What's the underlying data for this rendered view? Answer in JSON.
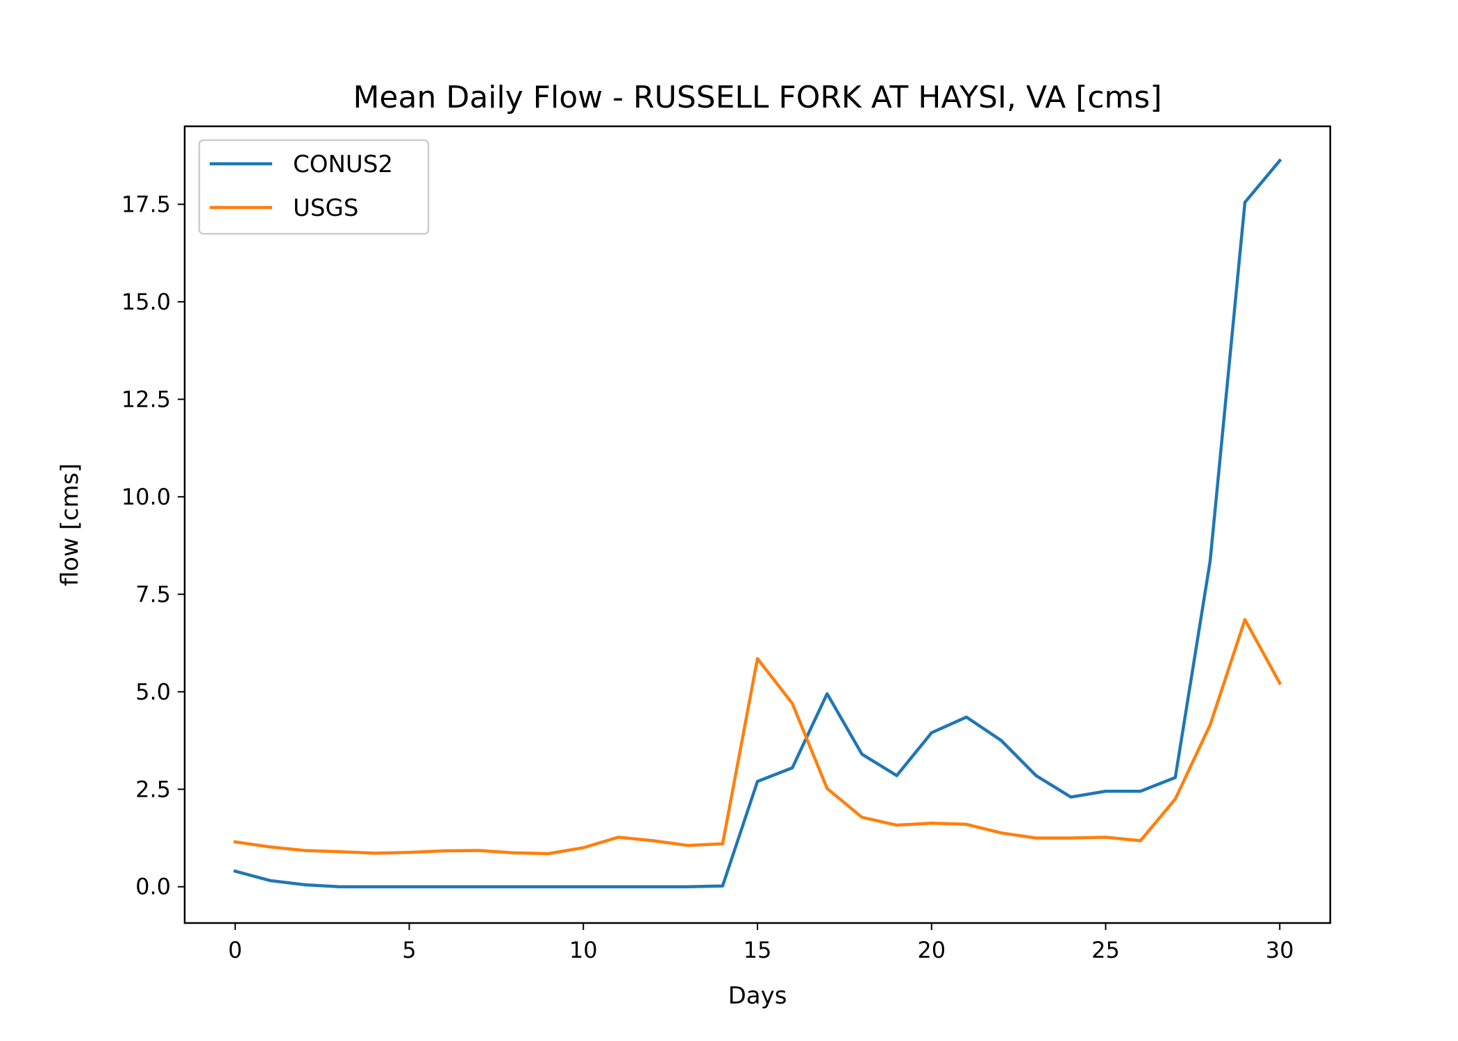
{
  "chart_data": {
    "type": "line",
    "title": "Mean Daily Flow - RUSSELL FORK AT HAYSI, VA [cms]",
    "xlabel": "Days",
    "ylabel": "flow [cms]",
    "xlim": [
      -1.45,
      31.45
    ],
    "ylim": [
      -0.93,
      19.5
    ],
    "xticks": [
      0,
      5,
      10,
      15,
      20,
      25,
      30
    ],
    "yticks": [
      0.0,
      2.5,
      5.0,
      7.5,
      10.0,
      12.5,
      15.0,
      17.5
    ],
    "ytick_labels": [
      "0.0",
      "2.5",
      "5.0",
      "7.5",
      "10.0",
      "12.5",
      "15.0",
      "17.5"
    ],
    "legend_position": "upper-left",
    "grid": false,
    "x": [
      0,
      1,
      2,
      3,
      4,
      5,
      6,
      7,
      8,
      9,
      10,
      11,
      12,
      13,
      14,
      15,
      16,
      17,
      18,
      19,
      20,
      21,
      22,
      23,
      24,
      25,
      26,
      27,
      28,
      29,
      30
    ],
    "series": [
      {
        "name": "CONUS2",
        "color": "#1f77b4",
        "values": [
          0.4,
          0.16,
          0.05,
          0.0,
          0.0,
          0.0,
          0.0,
          0.0,
          0.0,
          0.0,
          0.0,
          0.0,
          0.0,
          0.0,
          0.02,
          2.7,
          3.05,
          4.95,
          3.4,
          2.85,
          3.95,
          4.35,
          3.75,
          2.85,
          2.3,
          2.45,
          2.45,
          2.8,
          8.35,
          17.55,
          18.62
        ]
      },
      {
        "name": "USGS",
        "color": "#ff7f0e",
        "values": [
          1.15,
          1.02,
          0.93,
          0.9,
          0.86,
          0.88,
          0.92,
          0.93,
          0.87,
          0.85,
          1.0,
          1.27,
          1.18,
          1.06,
          1.1,
          5.85,
          4.7,
          2.52,
          1.78,
          1.58,
          1.63,
          1.6,
          1.38,
          1.25,
          1.25,
          1.27,
          1.18,
          2.25,
          4.15,
          6.85,
          5.22
        ]
      }
    ]
  }
}
